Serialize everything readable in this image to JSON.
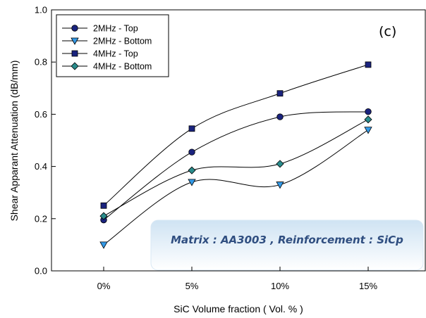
{
  "chart_data": {
    "type": "line",
    "title": "",
    "panel_label": "(c)",
    "xlabel": "SiC Volume fraction ( Vol. % )",
    "ylabel": "Shear Apparant  Attenuation (dB/mm)",
    "categories": [
      "0%",
      "5%",
      "10%",
      "15%"
    ],
    "ylim": [
      0.0,
      1.0
    ],
    "yticks": [
      "0.0",
      "0.2",
      "0.4",
      "0.6",
      "0.8",
      "1.0"
    ],
    "grid": false,
    "legend_position": "top-left",
    "annotation": "Matrix : AA3003 , Reinforcement : SiCp",
    "series": [
      {
        "name": "2MHz - Top",
        "marker": "circle",
        "color": "#1a237e",
        "values": [
          0.195,
          0.455,
          0.59,
          0.61
        ]
      },
      {
        "name": "2MHz - Bottom",
        "marker": "triangle-down",
        "color": "#3399e6",
        "values": [
          0.1,
          0.34,
          0.33,
          0.54
        ]
      },
      {
        "name": "4MHz - Top",
        "marker": "square",
        "color": "#1a237e",
        "values": [
          0.25,
          0.545,
          0.68,
          0.79
        ]
      },
      {
        "name": "4MHz - Bottom",
        "marker": "diamond",
        "color": "#2a8c8c",
        "values": [
          0.21,
          0.385,
          0.41,
          0.58
        ]
      }
    ]
  }
}
